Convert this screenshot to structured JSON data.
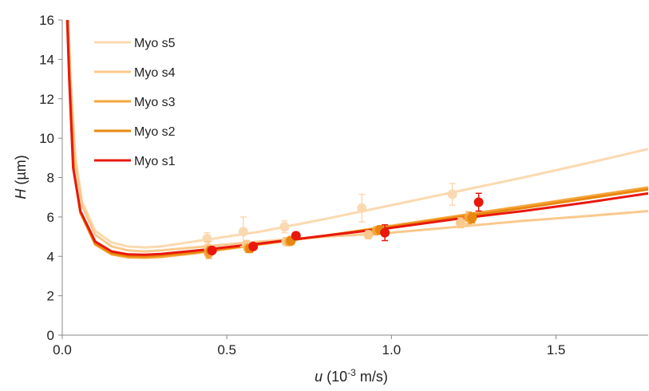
{
  "chart_data": {
    "type": "line",
    "xlabel": {
      "var": "u",
      "prefix": " (10",
      "sup": "-3",
      "suffix": " m/s)"
    },
    "ylabel": {
      "var": "H",
      "suffix": " (µm)"
    },
    "xlim": [
      0,
      1.78
    ],
    "ylim": [
      0,
      16
    ],
    "xticks": [
      0,
      0.5,
      1.0,
      1.5
    ],
    "xtick_labels": [
      "0.0",
      "0.5",
      "1.0",
      "1.5"
    ],
    "yticks": [
      0,
      2,
      4,
      6,
      8,
      10,
      12,
      14,
      16
    ],
    "ytick_labels": [
      "0",
      "2",
      "4",
      "6",
      "8",
      "10",
      "12",
      "14",
      "16"
    ],
    "grid": false,
    "legend_position": "top-left",
    "series": [
      {
        "name": "Myo s5",
        "color": "#fbd9b0",
        "fit": [
          [
            0.018,
            16.0
          ],
          [
            0.025,
            13.0
          ],
          [
            0.04,
            9.0
          ],
          [
            0.06,
            6.8
          ],
          [
            0.1,
            5.3
          ],
          [
            0.15,
            4.7
          ],
          [
            0.2,
            4.5
          ],
          [
            0.25,
            4.45
          ],
          [
            0.3,
            4.5
          ],
          [
            0.4,
            4.75
          ],
          [
            0.6,
            5.25
          ],
          [
            0.8,
            5.9
          ],
          [
            1.0,
            6.6
          ],
          [
            1.2,
            7.3
          ],
          [
            1.4,
            8.0
          ],
          [
            1.6,
            8.75
          ],
          [
            1.78,
            9.45
          ]
        ],
        "points": [
          {
            "x": 0.44,
            "y": 4.9,
            "err": 0.3
          },
          {
            "x": 0.55,
            "y": 5.25,
            "err": 0.75
          },
          {
            "x": 0.675,
            "y": 5.5,
            "err": 0.3
          },
          {
            "x": 0.91,
            "y": 6.45,
            "err": 0.7
          },
          {
            "x": 1.185,
            "y": 7.15,
            "err": 0.55
          }
        ]
      },
      {
        "name": "Myo s4",
        "color": "#f9c98d",
        "fit": [
          [
            0.018,
            16.0
          ],
          [
            0.025,
            13.0
          ],
          [
            0.04,
            8.8
          ],
          [
            0.06,
            6.6
          ],
          [
            0.1,
            5.1
          ],
          [
            0.15,
            4.5
          ],
          [
            0.2,
            4.3
          ],
          [
            0.25,
            4.25
          ],
          [
            0.3,
            4.3
          ],
          [
            0.4,
            4.45
          ],
          [
            0.6,
            4.75
          ],
          [
            0.8,
            5.0
          ],
          [
            1.0,
            5.2
          ],
          [
            1.2,
            5.5
          ],
          [
            1.4,
            5.8
          ],
          [
            1.6,
            6.05
          ],
          [
            1.78,
            6.3
          ]
        ],
        "points": [
          {
            "x": 0.445,
            "y": 4.4,
            "err": 0.35
          },
          {
            "x": 0.56,
            "y": 4.6,
            "err": 0.2
          },
          {
            "x": 0.68,
            "y": 4.75,
            "err": 0.2
          },
          {
            "x": 0.93,
            "y": 5.1,
            "err": 0.2
          },
          {
            "x": 1.21,
            "y": 5.7,
            "err": 0.25
          }
        ]
      },
      {
        "name": "Myo s3",
        "color": "#f6a53c",
        "fit": [
          [
            0.016,
            16.0
          ],
          [
            0.022,
            13.0
          ],
          [
            0.035,
            8.4
          ],
          [
            0.055,
            6.2
          ],
          [
            0.1,
            4.6
          ],
          [
            0.15,
            4.1
          ],
          [
            0.2,
            3.95
          ],
          [
            0.25,
            3.93
          ],
          [
            0.3,
            3.97
          ],
          [
            0.4,
            4.15
          ],
          [
            0.6,
            4.6
          ],
          [
            0.8,
            5.05
          ],
          [
            1.0,
            5.55
          ],
          [
            1.2,
            6.05
          ],
          [
            1.4,
            6.55
          ],
          [
            1.6,
            7.05
          ],
          [
            1.78,
            7.5
          ]
        ],
        "points": [
          {
            "x": 0.445,
            "y": 4.15,
            "err": 0.25
          },
          {
            "x": 0.565,
            "y": 4.4,
            "err": 0.2
          },
          {
            "x": 0.69,
            "y": 4.75,
            "err": 0.2
          },
          {
            "x": 0.955,
            "y": 5.3,
            "err": 0.2
          },
          {
            "x": 1.235,
            "y": 5.95,
            "err": 0.3
          }
        ]
      },
      {
        "name": "Myo s2",
        "color": "#e8870f",
        "fit": [
          [
            0.016,
            16.0
          ],
          [
            0.022,
            13.0
          ],
          [
            0.035,
            8.4
          ],
          [
            0.055,
            6.25
          ],
          [
            0.1,
            4.65
          ],
          [
            0.15,
            4.15
          ],
          [
            0.2,
            4.02
          ],
          [
            0.25,
            4.0
          ],
          [
            0.3,
            4.05
          ],
          [
            0.4,
            4.2
          ],
          [
            0.6,
            4.62
          ],
          [
            0.8,
            5.05
          ],
          [
            1.0,
            5.5
          ],
          [
            1.2,
            5.98
          ],
          [
            1.4,
            6.45
          ],
          [
            1.6,
            6.95
          ],
          [
            1.78,
            7.4
          ]
        ],
        "points": [
          {
            "x": 0.45,
            "y": 4.3,
            "err": 0.2
          },
          {
            "x": 0.57,
            "y": 4.4,
            "err": 0.2
          },
          {
            "x": 0.695,
            "y": 4.8,
            "err": 0.2
          },
          {
            "x": 0.965,
            "y": 5.35,
            "err": 0.2
          },
          {
            "x": 1.245,
            "y": 5.95,
            "err": 0.25
          }
        ]
      },
      {
        "name": "Myo s1",
        "color": "#e8180c",
        "fit": [
          [
            0.015,
            16.0
          ],
          [
            0.021,
            13.0
          ],
          [
            0.033,
            8.5
          ],
          [
            0.055,
            6.3
          ],
          [
            0.1,
            4.75
          ],
          [
            0.15,
            4.25
          ],
          [
            0.2,
            4.1
          ],
          [
            0.25,
            4.08
          ],
          [
            0.3,
            4.12
          ],
          [
            0.4,
            4.28
          ],
          [
            0.6,
            4.65
          ],
          [
            0.8,
            5.05
          ],
          [
            1.0,
            5.45
          ],
          [
            1.2,
            5.9
          ],
          [
            1.4,
            6.3
          ],
          [
            1.6,
            6.75
          ],
          [
            1.78,
            7.2
          ]
        ],
        "points": [
          {
            "x": 0.455,
            "y": 4.3,
            "err": 0.15
          },
          {
            "x": 0.58,
            "y": 4.5,
            "err": 0.15
          },
          {
            "x": 0.71,
            "y": 5.05,
            "err": 0.15
          },
          {
            "x": 0.98,
            "y": 5.2,
            "err": 0.4
          },
          {
            "x": 1.265,
            "y": 6.75,
            "err": 0.45
          }
        ]
      }
    ]
  }
}
